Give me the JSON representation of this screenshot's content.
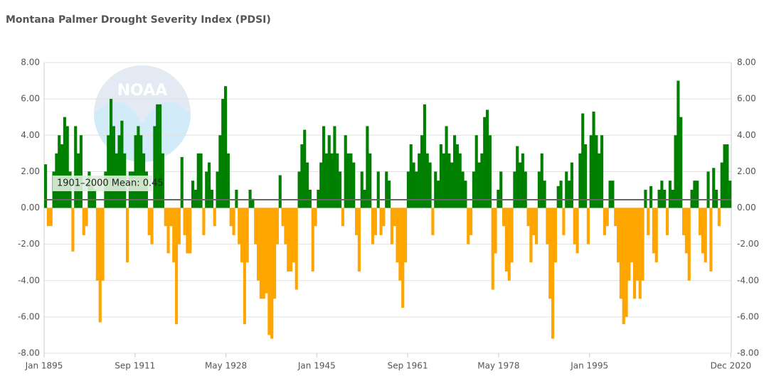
{
  "chart_data": {
    "type": "bar",
    "title": "Montana Palmer Drought Severity Index (PDSI)",
    "watermark": "NOAA",
    "positive_color": "#008000",
    "negative_color": "#ffa500",
    "mean": {
      "value": 0.45,
      "label": "1901–2000 Mean: 0.45"
    },
    "xlim": [
      1895,
      2021
    ],
    "xticks": [
      {
        "value": 1895,
        "label": "Jan 1895"
      },
      {
        "value": 1911.667,
        "label": "Sep 1911"
      },
      {
        "value": 1928.333,
        "label": "May 1928"
      },
      {
        "value": 1945,
        "label": "Jan 1945"
      },
      {
        "value": 1961.667,
        "label": "Sep 1961"
      },
      {
        "value": 1978.333,
        "label": "May 1978"
      },
      {
        "value": 1995,
        "label": "Jan 1995"
      },
      {
        "value": 2020.917,
        "label": "Dec 2020"
      }
    ],
    "ylim": [
      -8,
      8
    ],
    "yticks": [
      {
        "value": -8,
        "label": "-8.00"
      },
      {
        "value": -6,
        "label": "-6.00"
      },
      {
        "value": -4,
        "label": "-4.00"
      },
      {
        "value": -2,
        "label": "-2.00"
      },
      {
        "value": 0,
        "label": "0.00"
      },
      {
        "value": 2,
        "label": "2.00"
      },
      {
        "value": 4,
        "label": "4.00"
      },
      {
        "value": 6,
        "label": "6.00"
      },
      {
        "value": 8,
        "label": "8.00"
      }
    ],
    "grid": true,
    "x": [
      1895,
      1895.5,
      1896,
      1896.5,
      1897,
      1897.5,
      1898,
      1898.5,
      1899,
      1899.5,
      1900,
      1900.5,
      1901,
      1901.5,
      1902,
      1902.5,
      1903,
      1903.5,
      1904,
      1904.5,
      1905,
      1905.5,
      1906,
      1906.5,
      1907,
      1907.5,
      1908,
      1908.5,
      1909,
      1909.5,
      1910,
      1910.5,
      1911,
      1911.5,
      1912,
      1912.5,
      1913,
      1913.5,
      1914,
      1914.5,
      1915,
      1915.5,
      1916,
      1916.5,
      1917,
      1917.5,
      1918,
      1918.5,
      1919,
      1919.5,
      1920,
      1920.5,
      1921,
      1921.5,
      1922,
      1922.5,
      1923,
      1923.5,
      1924,
      1924.5,
      1925,
      1925.5,
      1926,
      1926.5,
      1927,
      1927.5,
      1928,
      1928.5,
      1929,
      1929.5,
      1930,
      1930.5,
      1931,
      1931.5,
      1932,
      1932.5,
      1933,
      1933.5,
      1934,
      1934.5,
      1935,
      1935.5,
      1936,
      1936.5,
      1937,
      1937.5,
      1938,
      1938.5,
      1939,
      1939.5,
      1940,
      1940.5,
      1941,
      1941.5,
      1942,
      1942.5,
      1943,
      1943.5,
      1944,
      1944.5,
      1945,
      1945.5,
      1946,
      1946.5,
      1947,
      1947.5,
      1948,
      1948.5,
      1949,
      1949.5,
      1950,
      1950.5,
      1951,
      1951.5,
      1952,
      1952.5,
      1953,
      1953.5,
      1954,
      1954.5,
      1955,
      1955.5,
      1956,
      1956.5,
      1957,
      1957.5,
      1958,
      1958.5,
      1959,
      1959.5,
      1960,
      1960.5,
      1961,
      1961.5,
      1962,
      1962.5,
      1963,
      1963.5,
      1964,
      1964.5,
      1965,
      1965.5,
      1966,
      1966.5,
      1967,
      1967.5,
      1968,
      1968.5,
      1969,
      1969.5,
      1970,
      1970.5,
      1971,
      1971.5,
      1972,
      1972.5,
      1973,
      1973.5,
      1974,
      1974.5,
      1975,
      1975.5,
      1976,
      1976.5,
      1977,
      1977.5,
      1978,
      1978.5,
      1979,
      1979.5,
      1980,
      1980.5,
      1981,
      1981.5,
      1982,
      1982.5,
      1983,
      1983.5,
      1984,
      1984.5,
      1985,
      1985.5,
      1986,
      1986.5,
      1987,
      1987.5,
      1988,
      1988.5,
      1989,
      1989.5,
      1990,
      1990.5,
      1991,
      1991.5,
      1992,
      1992.5,
      1993,
      1993.5,
      1994,
      1994.5,
      1995,
      1995.5,
      1996,
      1996.5,
      1997,
      1997.5,
      1998,
      1998.5,
      1999,
      1999.5,
      2000,
      2000.5,
      2001,
      2001.5,
      2002,
      2002.5,
      2003,
      2003.5,
      2004,
      2004.5,
      2005,
      2005.5,
      2006,
      2006.5,
      2007,
      2007.5,
      2008,
      2008.5,
      2009,
      2009.5,
      2010,
      2010.5,
      2011,
      2011.5,
      2012,
      2012.5,
      2013,
      2013.5,
      2014,
      2014.5,
      2015,
      2015.5,
      2016,
      2016.5,
      2017,
      2017.5,
      2018,
      2018.5,
      2019,
      2019.5,
      2020,
      2020.5
    ],
    "values": [
      2.4,
      -1,
      -1,
      2,
      3,
      4,
      3.5,
      5,
      4.5,
      2,
      -2.4,
      4.5,
      3,
      4,
      -1.5,
      -1,
      2,
      1.5,
      1,
      -4,
      -6.3,
      -4,
      2,
      4,
      6,
      4.5,
      3,
      4,
      4.8,
      3,
      -3,
      2,
      2,
      4,
      4.5,
      4,
      3,
      2,
      -1.5,
      -2,
      4.5,
      5.7,
      5.7,
      3,
      -1,
      -2.5,
      -1,
      -3,
      -6.4,
      -2,
      2.8,
      -1.5,
      -2.5,
      -2.5,
      1.5,
      1,
      3,
      3,
      -1.5,
      2,
      2.5,
      1,
      -1,
      2,
      4,
      6,
      6.7,
      3,
      -1,
      -1.5,
      1,
      -2,
      -3,
      -6.4,
      -3,
      1,
      0.5,
      -2,
      -4,
      -5,
      -5,
      -4.7,
      -7,
      -7.2,
      -5,
      -2,
      1.8,
      -1,
      -2,
      -3.5,
      -3.5,
      -3,
      -4.5,
      2,
      3.5,
      4.3,
      2.5,
      1,
      -3.5,
      -1,
      1,
      2.5,
      4.5,
      3,
      4,
      3,
      4.5,
      3,
      2,
      -1,
      4,
      3,
      3,
      2.5,
      -1.5,
      -3.5,
      2,
      1,
      4.5,
      3,
      -2,
      -1.5,
      2,
      -1.5,
      -1,
      2,
      1.5,
      -2,
      -1,
      -3,
      -4,
      -5.5,
      -3,
      2,
      3.5,
      2.5,
      2,
      3,
      4,
      5.7,
      3,
      2.5,
      -1.5,
      2,
      1.5,
      3.5,
      3,
      4.5,
      3,
      2.5,
      4,
      3.5,
      3,
      2,
      1.5,
      -2,
      -1.5,
      2,
      4,
      2.5,
      3,
      5,
      5.4,
      4,
      -4.5,
      -2.5,
      1,
      2,
      -1,
      -3.5,
      -4,
      -3,
      2,
      3.4,
      2.5,
      3,
      2,
      -1,
      -3,
      -1.5,
      -2,
      2,
      3,
      1.5,
      -2,
      -5,
      -7.2,
      -3,
      1.2,
      1.5,
      -1.5,
      2,
      1.5,
      2.5,
      -2,
      -2.5,
      3,
      5.2,
      3.5,
      -2,
      4,
      5.3,
      4,
      3,
      4,
      -1.5,
      -1,
      1.5,
      1.5,
      -1,
      -3,
      -5,
      -6.4,
      -6,
      -4,
      -3,
      -5,
      -4,
      -5,
      -4,
      1,
      -1.5,
      1.2,
      -2.5,
      -3,
      1,
      1.5,
      1,
      -1.5,
      1.5,
      1,
      4,
      7,
      5,
      -1.5,
      -2.5,
      -4,
      1,
      1.5,
      1.5,
      -1.5,
      -2.5,
      -3,
      2,
      -3.5,
      2.2,
      1,
      -1,
      2.5,
      3.5,
      3.5,
      1.5
    ]
  }
}
